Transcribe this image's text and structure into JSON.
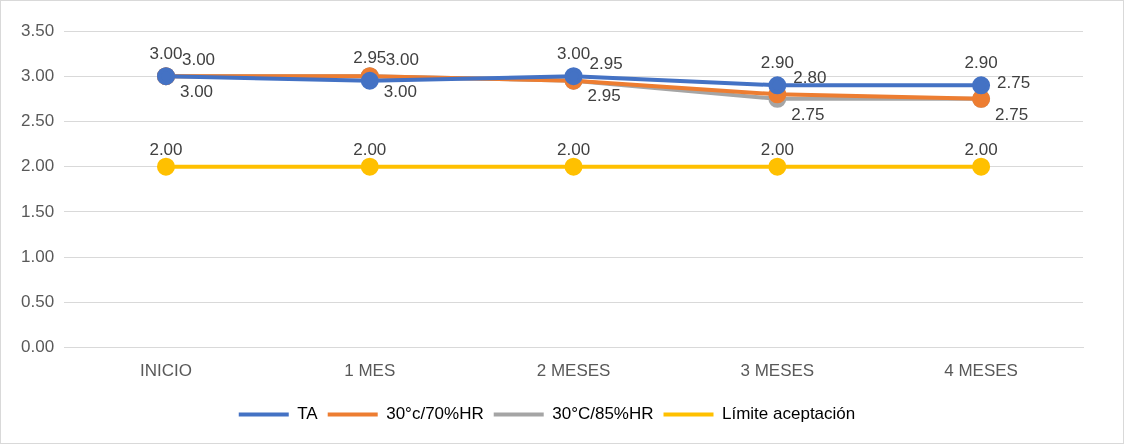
{
  "chart_data": {
    "type": "line",
    "categories": [
      "INICIO",
      "1 MES",
      "2 MESES",
      "3 MESES",
      "4 MESES"
    ],
    "series": [
      {
        "name": "TA",
        "color": "#4472c4",
        "values": [
          3.0,
          2.95,
          3.0,
          2.9,
          2.9
        ],
        "value_labels": [
          "3.00",
          "2.95",
          "3.00",
          "2.90",
          "2.90"
        ]
      },
      {
        "name": "30°c/70%HR",
        "color": "#ed7d31",
        "values": [
          3.0,
          3.0,
          2.95,
          2.8,
          2.75
        ],
        "value_labels": [
          "3.00",
          "3.00",
          "2.95",
          "2.80",
          "2.75"
        ]
      },
      {
        "name": "30°C/85%HR",
        "color": "#a5a5a5",
        "values": [
          3.0,
          3.0,
          2.95,
          2.75,
          2.75
        ],
        "value_labels": [
          "3.00",
          "3.00",
          "2.95",
          "2.75",
          "2.75"
        ]
      },
      {
        "name": "Límite aceptación",
        "color": "#ffc000",
        "values": [
          2.0,
          2.0,
          2.0,
          2.0,
          2.0
        ],
        "value_labels": [
          "2.00",
          "2.00",
          "2.00",
          "2.00",
          "2.00"
        ]
      }
    ],
    "ylim": [
      0,
      3.5
    ],
    "yticks": [
      {
        "value": 0,
        "label": "0.00"
      },
      {
        "value": 0.5,
        "label": "0.50"
      },
      {
        "value": 1,
        "label": "1.00"
      },
      {
        "value": 1.5,
        "label": "1.50"
      },
      {
        "value": 2,
        "label": "2.00"
      },
      {
        "value": 2.5,
        "label": "2.50"
      },
      {
        "value": 3,
        "label": "3.00"
      },
      {
        "value": 3.5,
        "label": "3.50"
      }
    ],
    "grid": "y",
    "legend": "bottom",
    "marker": "circle",
    "line_style": "solid"
  }
}
